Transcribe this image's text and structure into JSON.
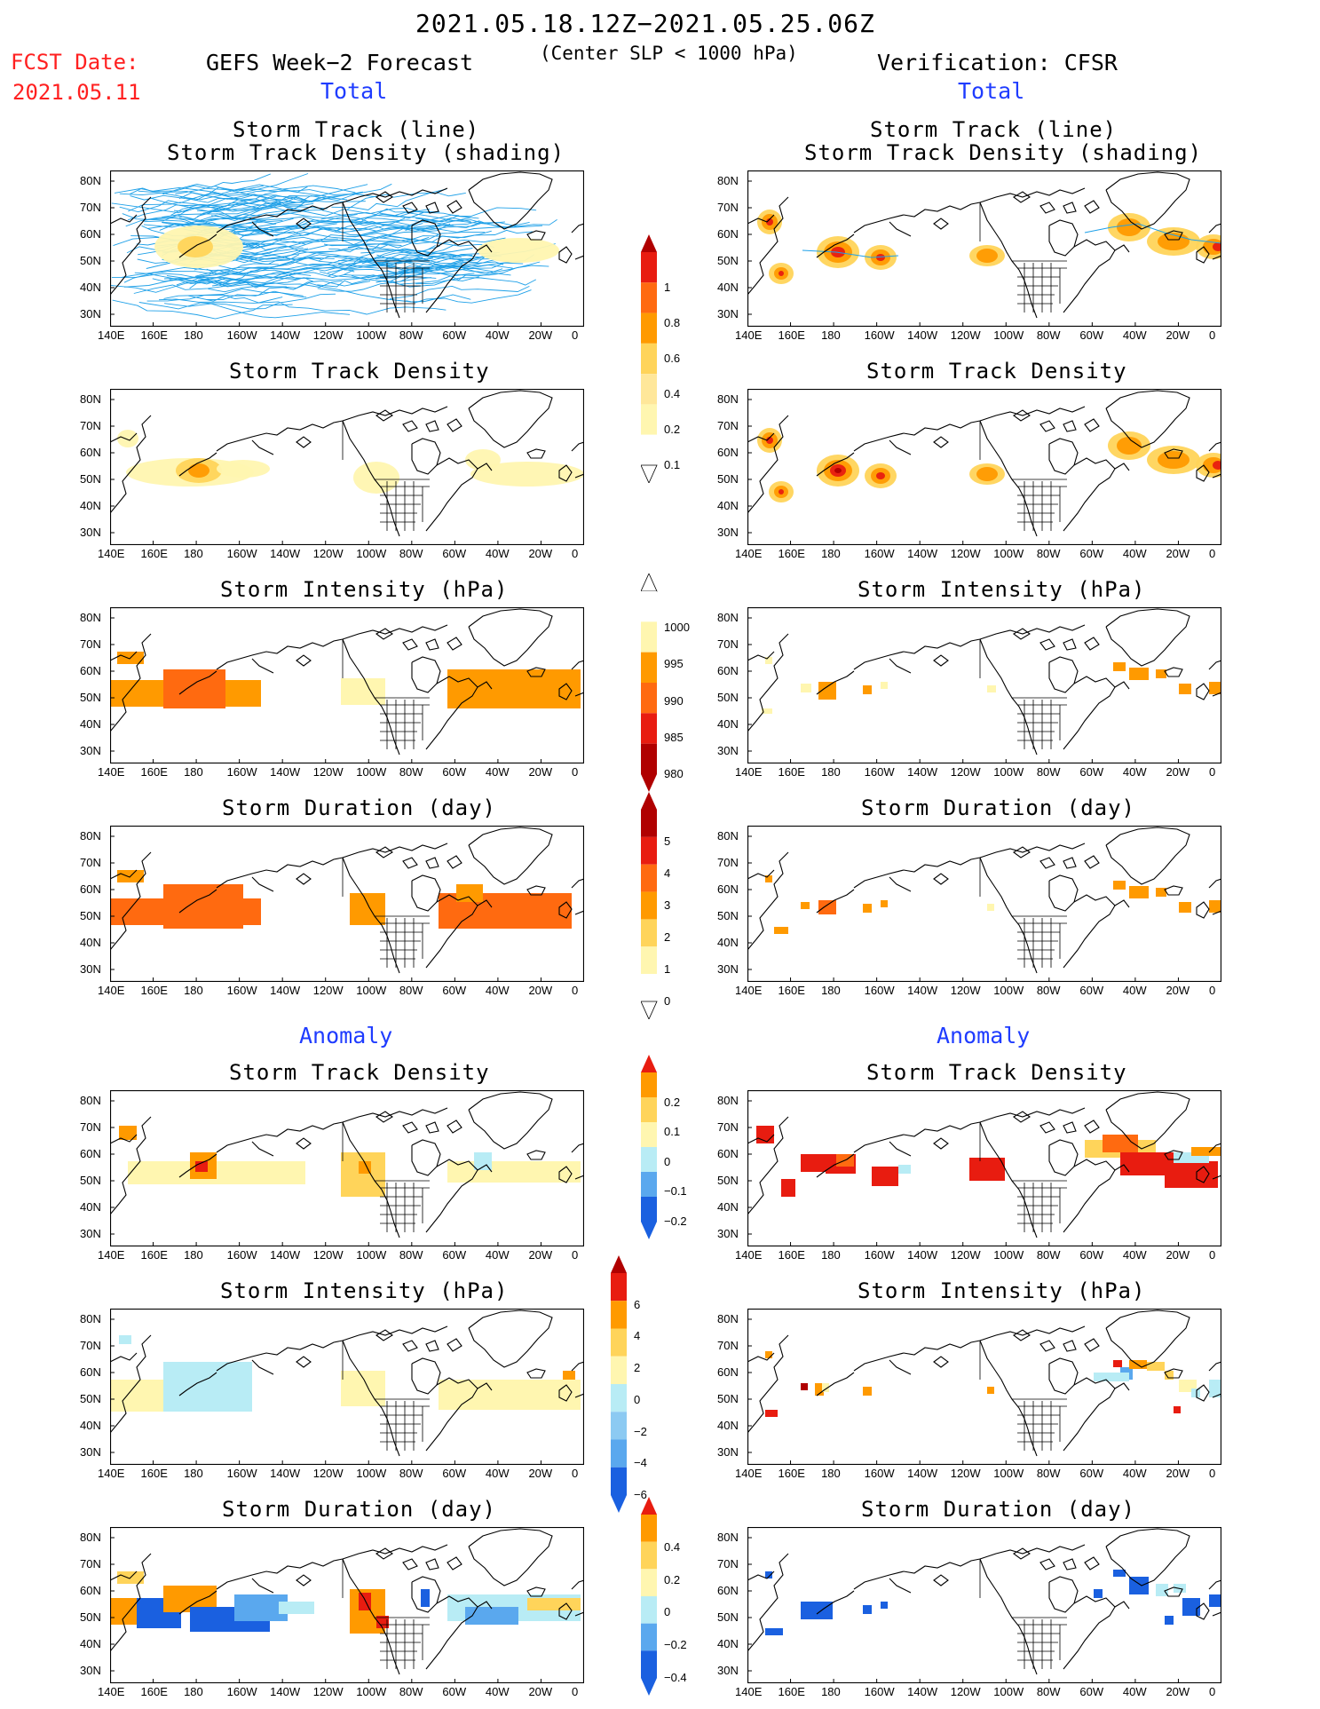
{
  "header": {
    "date_range": "2021.05.18.12Z−2021.05.25.06Z",
    "fcst_label": "FCST Date:",
    "fcst_date": "2021.05.11",
    "left_title": "GEFS Week−2 Forecast",
    "condition": "(Center SLP < 1000 hPa)",
    "right_title": "Verification: CFSR",
    "left_total": "Total",
    "right_total": "Total",
    "left_anomaly": "Anomaly",
    "right_anomaly": "Anomaly"
  },
  "titles": {
    "track_line": "Storm Track (line)",
    "track_shading": "Storm Track Density (shading)",
    "density": "Storm Track Density",
    "intensity": "Storm Intensity (hPa)",
    "duration": "Storm Duration (day)"
  },
  "axes": {
    "lon_ticks": [
      "140E",
      "160E",
      "180",
      "160W",
      "140W",
      "120W",
      "100W",
      "80W",
      "60W",
      "40W",
      "20W",
      "0"
    ],
    "lat_ticks": [
      "80N",
      "70N",
      "60N",
      "50N",
      "40N",
      "30N"
    ]
  },
  "colorbars": {
    "density_total": [
      "1",
      "0.8",
      "0.6",
      "0.4",
      "0.2",
      "0.1"
    ],
    "intensity_total": [
      "1000",
      "995",
      "990",
      "985",
      "980"
    ],
    "duration_total": [
      "5",
      "4",
      "3",
      "2",
      "1",
      "0"
    ],
    "density_anom": [
      "0.2",
      "0.1",
      "0",
      "−0.1",
      "−0.2"
    ],
    "intensity_anom": [
      "6",
      "4",
      "2",
      "0",
      "−2",
      "−4",
      "−6"
    ],
    "duration_anom": [
      "0.4",
      "0.2",
      "0",
      "−0.2",
      "−0.4"
    ]
  },
  "colors": {
    "pale_yellow": "#fff6b0",
    "yellow": "#ffd45a",
    "orange": "#ff9a00",
    "dark_orange": "#ff6a10",
    "red": "#e81c10",
    "dark_red": "#b00000",
    "light_blue": "#b8ecf5",
    "mid_blue": "#5aa8ee",
    "blue": "#1a60e0",
    "track_blue": "#1ea0e8"
  }
}
